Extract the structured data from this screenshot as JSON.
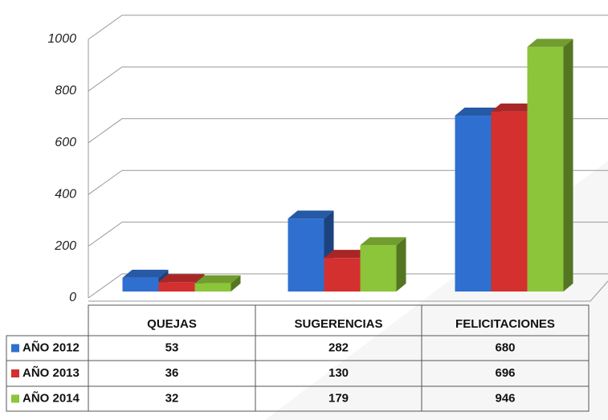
{
  "chart_data": {
    "type": "bar3d",
    "categories": [
      "QUEJAS",
      "SUGERENCIAS",
      "FELICITACIONES"
    ],
    "series": [
      {
        "name": "AÑO 2012",
        "color": "#2f6fd0",
        "values": [
          53,
          282,
          680
        ]
      },
      {
        "name": "AÑO 2013",
        "color": "#d3302f",
        "values": [
          36,
          130,
          696
        ]
      },
      {
        "name": "AÑO 2014",
        "color": "#8cc43a",
        "values": [
          32,
          179,
          946
        ]
      }
    ],
    "ylim": [
      0,
      1000
    ],
    "yticks": [
      0,
      200,
      400,
      600,
      800,
      1000
    ],
    "grid": true
  }
}
